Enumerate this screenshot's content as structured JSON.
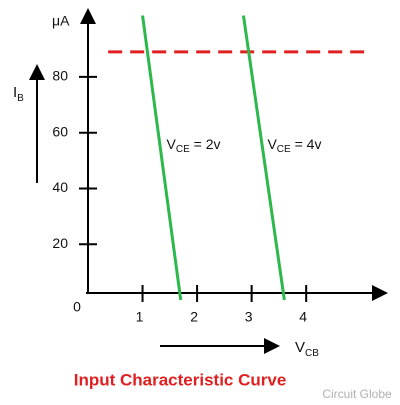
{
  "chart_data": {
    "type": "line",
    "title": "Input Characteristic Curve",
    "watermark": "Circuit Globe",
    "y_label": {
      "main": "I",
      "sub": "B"
    },
    "y_unit": "μA",
    "x_label": {
      "main": "V",
      "sub": "CB"
    },
    "origin_label": "0",
    "xlim": [
      0,
      5.5
    ],
    "ylim": [
      0,
      104
    ],
    "xticks": [
      1,
      2,
      3,
      4
    ],
    "yticks": [
      20,
      40,
      60,
      80
    ],
    "series": [
      {
        "label": {
          "main": "V",
          "sub": "CE",
          "rest": " = 2v"
        },
        "color": "#2db84b",
        "x": [
          1.0,
          1.7
        ],
        "values": [
          102,
          0
        ]
      },
      {
        "label": {
          "main": "V",
          "sub": "CE",
          "rest": " = 4v"
        },
        "color": "#2db84b",
        "x": [
          2.85,
          3.6
        ],
        "values": [
          102,
          0
        ]
      }
    ],
    "reference_line": {
      "color": "#e02020",
      "x": [
        0.37,
        5.2
      ],
      "values": [
        89,
        89
      ]
    }
  }
}
